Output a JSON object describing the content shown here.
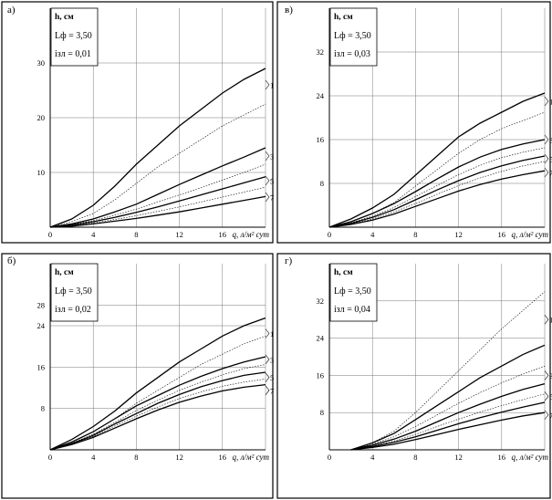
{
  "chart_data": [
    {
      "id": "a",
      "type": "line",
      "panel_label": "а)",
      "ylabel": "h, см",
      "xlabel": "q, л/м² сут",
      "params": [
        "Lф = 3,50",
        "iзл = 0,01"
      ],
      "xlim": [
        0,
        20
      ],
      "ylim": [
        0,
        40
      ],
      "xticks": [
        0,
        4,
        8,
        12,
        16
      ],
      "yticks": [
        10,
        20,
        30
      ],
      "grid": true,
      "series": [
        {
          "style": "solid",
          "x": [
            0,
            2,
            4,
            6,
            8,
            10,
            12,
            14,
            16,
            18,
            20
          ],
          "y": [
            0,
            1.5,
            4,
            7.5,
            11.5,
            15,
            18.5,
            21.5,
            24.5,
            27,
            29
          ]
        },
        {
          "style": "dotted",
          "x": [
            0,
            2,
            4,
            6,
            8,
            10,
            12,
            14,
            16,
            18,
            20
          ],
          "y": [
            0,
            1,
            2.5,
            5,
            8,
            11,
            13.5,
            16,
            18.5,
            20.5,
            22.5
          ]
        },
        {
          "style": "solid",
          "x": [
            0,
            2,
            4,
            6,
            8,
            10,
            12,
            14,
            16,
            18,
            20
          ],
          "y": [
            0,
            0.6,
            1.5,
            2.8,
            4.2,
            6,
            7.8,
            9.5,
            11.2,
            12.8,
            14.5
          ]
        },
        {
          "style": "dotted",
          "x": [
            0,
            2,
            4,
            6,
            8,
            10,
            12,
            14,
            16,
            18,
            20
          ],
          "y": [
            0,
            0.5,
            1.2,
            2.2,
            3.3,
            4.6,
            5.9,
            7.2,
            8.6,
            10,
            11.5
          ]
        },
        {
          "style": "solid",
          "x": [
            0,
            2,
            4,
            6,
            8,
            10,
            12,
            14,
            16,
            18,
            20
          ],
          "y": [
            0,
            0.4,
            1,
            1.8,
            2.7,
            3.7,
            4.8,
            5.9,
            7,
            8.1,
            9.2
          ]
        },
        {
          "style": "dotted",
          "x": [
            0,
            2,
            4,
            6,
            8,
            10,
            12,
            14,
            16,
            18,
            20
          ],
          "y": [
            0,
            0.3,
            0.8,
            1.4,
            2.1,
            2.9,
            3.7,
            4.6,
            5.5,
            6.4,
            7.3
          ]
        },
        {
          "style": "solid",
          "x": [
            0,
            2,
            4,
            6,
            8,
            10,
            12,
            14,
            16,
            18,
            20
          ],
          "y": [
            0,
            0.2,
            0.6,
            1.1,
            1.6,
            2.2,
            2.8,
            3.5,
            4.2,
            4.9,
            5.6
          ]
        }
      ],
      "annotations": [
        {
          "text": "1",
          "x": 20,
          "y": 26
        },
        {
          "text": "3",
          "x": 20,
          "y": 13
        },
        {
          "text": "5",
          "x": 20,
          "y": 8.5
        },
        {
          "text": "7",
          "x": 20,
          "y": 5.5
        }
      ]
    },
    {
      "id": "v",
      "type": "line",
      "panel_label": "в)",
      "ylabel": "h, см",
      "xlabel": "q, л/м² сут",
      "params": [
        "Lф = 3,50",
        "iзл = 0,03"
      ],
      "xlim": [
        0,
        20
      ],
      "ylim": [
        0,
        40
      ],
      "xticks": [
        0,
        4,
        8,
        12,
        16
      ],
      "yticks": [
        8,
        16,
        24,
        32
      ],
      "grid": true,
      "series": [
        {
          "style": "solid",
          "x": [
            0,
            2,
            4,
            6,
            8,
            10,
            12,
            14,
            16,
            18,
            20
          ],
          "y": [
            0,
            1.5,
            3.5,
            6,
            9.5,
            13,
            16.5,
            19,
            21,
            23,
            24.5
          ]
        },
        {
          "style": "dotted",
          "x": [
            0,
            2,
            4,
            6,
            8,
            10,
            12,
            14,
            16,
            18,
            20
          ],
          "y": [
            0,
            1,
            2.5,
            4.5,
            7.5,
            10.5,
            13.5,
            16,
            18,
            19.5,
            21
          ]
        },
        {
          "style": "solid",
          "x": [
            0,
            2,
            4,
            6,
            8,
            10,
            12,
            14,
            16,
            18,
            20
          ],
          "y": [
            0,
            1,
            2.5,
            4.3,
            6.5,
            8.8,
            11,
            12.8,
            14.2,
            15.2,
            16
          ]
        },
        {
          "style": "dotted",
          "x": [
            0,
            2,
            4,
            6,
            8,
            10,
            12,
            14,
            16,
            18,
            20
          ],
          "y": [
            0,
            0.8,
            2,
            3.6,
            5.6,
            7.6,
            9.6,
            11.3,
            12.7,
            13.7,
            14.5
          ]
        },
        {
          "style": "solid",
          "x": [
            0,
            2,
            4,
            6,
            8,
            10,
            12,
            14,
            16,
            18,
            20
          ],
          "y": [
            0,
            0.7,
            1.8,
            3.2,
            5,
            6.8,
            8.5,
            10,
            11.2,
            12.2,
            13
          ]
        },
        {
          "style": "dotted",
          "x": [
            0,
            2,
            4,
            6,
            8,
            10,
            12,
            14,
            16,
            18,
            20
          ],
          "y": [
            0,
            0.6,
            1.5,
            2.8,
            4.3,
            6,
            7.6,
            9,
            10.2,
            11.2,
            12
          ]
        },
        {
          "style": "solid",
          "x": [
            0,
            2,
            4,
            6,
            8,
            10,
            12,
            14,
            16,
            18,
            20
          ],
          "y": [
            0,
            0.5,
            1.3,
            2.4,
            3.8,
            5.2,
            6.6,
            7.8,
            8.8,
            9.6,
            10.3
          ]
        }
      ],
      "annotations": [
        {
          "text": "1",
          "x": 20,
          "y": 23
        },
        {
          "text": "3",
          "x": 20,
          "y": 16
        },
        {
          "text": "5",
          "x": 20,
          "y": 12.5
        },
        {
          "text": "7",
          "x": 20,
          "y": 10
        }
      ]
    },
    {
      "id": "b",
      "type": "line",
      "panel_label": "б)",
      "ylabel": "h, см",
      "xlabel": "q, л/м² сут",
      "params": [
        "Lф = 3,50",
        "iзл = 0,02"
      ],
      "xlim": [
        0,
        20
      ],
      "ylim": [
        0,
        36
      ],
      "xticks": [
        0,
        4,
        8,
        12,
        16
      ],
      "yticks": [
        8,
        16,
        24,
        28
      ],
      "grid": true,
      "series": [
        {
          "style": "solid",
          "x": [
            0,
            2,
            4,
            6,
            8,
            10,
            12,
            14,
            16,
            18,
            20
          ],
          "y": [
            0,
            2,
            4.5,
            7.5,
            11,
            14,
            17,
            19.5,
            22,
            24,
            25.5
          ]
        },
        {
          "style": "dotted",
          "x": [
            0,
            2,
            4,
            6,
            8,
            10,
            12,
            14,
            16,
            18,
            20
          ],
          "y": [
            0,
            1.5,
            3.5,
            6,
            9,
            11.5,
            14,
            16.5,
            18.5,
            20.5,
            22
          ]
        },
        {
          "style": "solid",
          "x": [
            0,
            2,
            4,
            6,
            8,
            10,
            12,
            14,
            16,
            18,
            20
          ],
          "y": [
            0,
            1.5,
            3.5,
            6,
            8.5,
            10.5,
            12.5,
            14.2,
            15.7,
            17,
            18
          ]
        },
        {
          "style": "dotted",
          "x": [
            0,
            2,
            4,
            6,
            8,
            10,
            12,
            14,
            16,
            18,
            20
          ],
          "y": [
            0,
            1.3,
            3,
            5.3,
            7.6,
            9.6,
            11.5,
            13.1,
            14.5,
            15.7,
            16.5
          ]
        },
        {
          "style": "solid",
          "x": [
            0,
            2,
            4,
            6,
            8,
            10,
            12,
            14,
            16,
            18,
            20
          ],
          "y": [
            0,
            1.2,
            2.8,
            5,
            7,
            9,
            10.7,
            12.2,
            13.4,
            14.4,
            15
          ]
        },
        {
          "style": "dotted",
          "x": [
            0,
            2,
            4,
            6,
            8,
            10,
            12,
            14,
            16,
            18,
            20
          ],
          "y": [
            0,
            1.1,
            2.6,
            4.6,
            6.5,
            8.3,
            9.9,
            11.2,
            12.3,
            13.1,
            13.7
          ]
        },
        {
          "style": "solid",
          "x": [
            0,
            2,
            4,
            6,
            8,
            10,
            12,
            14,
            16,
            18,
            20
          ],
          "y": [
            0,
            1,
            2.4,
            4.2,
            6,
            7.7,
            9.2,
            10.4,
            11.4,
            12.1,
            12.6
          ]
        }
      ],
      "annotations": [
        {
          "text": "1",
          "x": 20,
          "y": 22.5
        },
        {
          "text": "3",
          "x": 20,
          "y": 17.5
        },
        {
          "text": "5",
          "x": 20,
          "y": 14
        },
        {
          "text": "7",
          "x": 20,
          "y": 11.5
        }
      ]
    },
    {
      "id": "g",
      "type": "line",
      "panel_label": "г)",
      "ylabel": "h, см",
      "xlabel": "q, л/м² сут",
      "params": [
        "Lф = 3,50",
        "iзл = 0,04"
      ],
      "xlim": [
        0,
        20
      ],
      "ylim": [
        0,
        40
      ],
      "xticks": [
        0,
        4,
        8,
        12,
        16
      ],
      "yticks": [
        8,
        16,
        24,
        32
      ],
      "grid": true,
      "series": [
        {
          "style": "dotted",
          "x": [
            2,
            4,
            6,
            8,
            10,
            12,
            14,
            16,
            18,
            20
          ],
          "y": [
            0,
            1.5,
            4,
            8,
            12.5,
            17,
            21.5,
            26,
            30,
            34
          ]
        },
        {
          "style": "solid",
          "x": [
            2,
            4,
            6,
            8,
            10,
            12,
            14,
            16,
            18,
            20
          ],
          "y": [
            0,
            1.5,
            3.5,
            6.5,
            9.5,
            12.5,
            15.5,
            18,
            20.5,
            22.5
          ]
        },
        {
          "style": "dotted",
          "x": [
            2,
            4,
            6,
            8,
            10,
            12,
            14,
            16,
            18,
            20
          ],
          "y": [
            0,
            1.2,
            2.8,
            5,
            7.5,
            10,
            12.3,
            14.4,
            16.3,
            18
          ]
        },
        {
          "style": "solid",
          "x": [
            2,
            4,
            6,
            8,
            10,
            12,
            14,
            16,
            18,
            20
          ],
          "y": [
            0,
            1,
            2.3,
            4,
            6,
            8,
            9.8,
            11.5,
            13,
            14.2
          ]
        },
        {
          "style": "dotted",
          "x": [
            2,
            4,
            6,
            8,
            10,
            12,
            14,
            16,
            18,
            20
          ],
          "y": [
            0,
            0.8,
            1.9,
            3.3,
            5,
            6.6,
            8.1,
            9.5,
            10.8,
            12
          ]
        },
        {
          "style": "solid",
          "x": [
            2,
            4,
            6,
            8,
            10,
            12,
            14,
            16,
            18,
            20
          ],
          "y": [
            0,
            0.7,
            1.6,
            2.8,
            4.2,
            5.6,
            6.9,
            8.1,
            9.2,
            10.2
          ]
        },
        {
          "style": "solid",
          "x": [
            2,
            4,
            6,
            8,
            10,
            12,
            14,
            16,
            18,
            20
          ],
          "y": [
            0,
            0.5,
            1.2,
            2.2,
            3.3,
            4.4,
            5.4,
            6.4,
            7.3,
            8
          ]
        }
      ],
      "annotations": [
        {
          "text": "1",
          "x": 20,
          "y": 28
        },
        {
          "text": "3",
          "x": 20,
          "y": 16
        },
        {
          "text": "5",
          "x": 20,
          "y": 11.5
        },
        {
          "text": "7",
          "x": 20,
          "y": 7.5
        }
      ]
    }
  ]
}
